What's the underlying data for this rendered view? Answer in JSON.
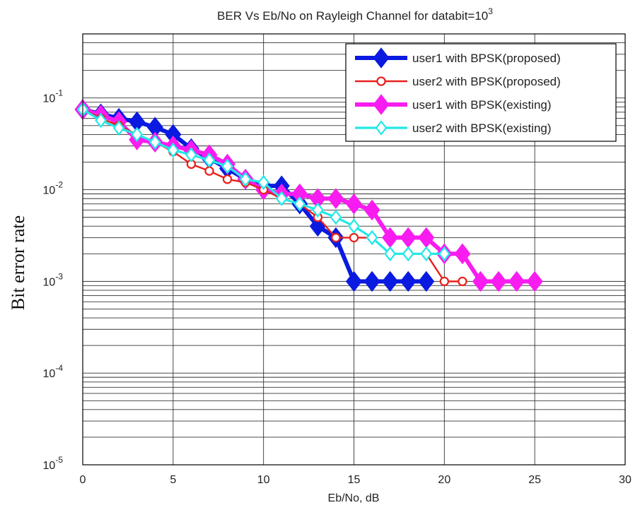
{
  "chart_data": {
    "type": "line",
    "title": "BER Vs Eb/No on Rayleigh Channel for databit=10",
    "title_superscript": "3",
    "xlabel": "Eb/No, dB",
    "ylabel": "Bit error rate",
    "xlim": [
      0,
      30
    ],
    "ylim": [
      1e-05,
      0.5
    ],
    "yscale": "log",
    "grid": true,
    "legend_position": "top-right",
    "x_ticks": [
      0,
      5,
      10,
      15,
      20,
      25,
      30
    ],
    "x_tick_labels": [
      "0",
      "5",
      "10",
      "15",
      "20",
      "25",
      "30"
    ],
    "y_ticks": [
      {
        "value": 0.1,
        "base": "10",
        "exp": "-1"
      },
      {
        "value": 0.01,
        "base": "10",
        "exp": "-2"
      },
      {
        "value": 0.001,
        "base": "10",
        "exp": "-3"
      },
      {
        "value": 0.0001,
        "base": "10",
        "exp": "-4"
      },
      {
        "value": 1e-05,
        "base": "10",
        "exp": "-5"
      }
    ],
    "series": [
      {
        "name": "user1 with BPSK(proposed)",
        "color": "#0a1ae0",
        "marker": "diamond",
        "filled": true,
        "x": [
          0,
          1,
          2,
          3,
          4,
          5,
          6,
          7,
          8,
          9,
          10,
          11,
          12,
          13,
          14,
          15,
          16,
          17,
          18,
          19
        ],
        "y": [
          0.075,
          0.067,
          0.06,
          0.055,
          0.048,
          0.04,
          0.028,
          0.022,
          0.017,
          0.013,
          0.011,
          0.011,
          0.007,
          0.004,
          0.003,
          0.001,
          0.001,
          0.001,
          0.001,
          0.001
        ]
      },
      {
        "name": "user2 with BPSK(proposed)",
        "color": "#e8201c",
        "marker": "circle",
        "filled": false,
        "x": [
          0,
          1,
          2,
          3,
          4,
          5,
          6,
          7,
          8,
          9,
          10,
          11,
          12,
          13,
          14,
          15,
          16,
          17,
          18,
          19,
          20,
          21
        ],
        "y": [
          0.075,
          0.06,
          0.05,
          0.04,
          0.033,
          0.026,
          0.019,
          0.016,
          0.013,
          0.012,
          0.01,
          0.008,
          0.007,
          0.005,
          0.003,
          0.003,
          0.003,
          0.002,
          0.002,
          0.002,
          0.001,
          0.001
        ]
      },
      {
        "name": "user1 with BPSK(existing)",
        "color": "#f81cf0",
        "marker": "diamond",
        "filled": true,
        "x": [
          0,
          1,
          2,
          3,
          4,
          5,
          6,
          7,
          8,
          9,
          10,
          11,
          12,
          13,
          14,
          15,
          16,
          17,
          18,
          19,
          20,
          21,
          22,
          23,
          24,
          25
        ],
        "y": [
          0.075,
          0.065,
          0.055,
          0.035,
          0.033,
          0.03,
          0.027,
          0.024,
          0.019,
          0.013,
          0.01,
          0.009,
          0.009,
          0.008,
          0.008,
          0.007,
          0.006,
          0.003,
          0.003,
          0.003,
          0.002,
          0.002,
          0.001,
          0.001,
          0.001,
          0.001
        ]
      },
      {
        "name": "user2 with BPSK(existing)",
        "color": "#22e8e8",
        "marker": "diamond",
        "filled": false,
        "x": [
          0,
          1,
          2,
          3,
          4,
          5,
          6,
          7,
          8,
          9,
          10,
          11,
          12,
          13,
          14,
          15,
          16,
          17,
          18,
          19,
          20
        ],
        "y": [
          0.075,
          0.057,
          0.047,
          0.04,
          0.033,
          0.027,
          0.024,
          0.021,
          0.018,
          0.013,
          0.012,
          0.008,
          0.007,
          0.006,
          0.005,
          0.004,
          0.003,
          0.002,
          0.002,
          0.002,
          0.002
        ]
      }
    ]
  }
}
